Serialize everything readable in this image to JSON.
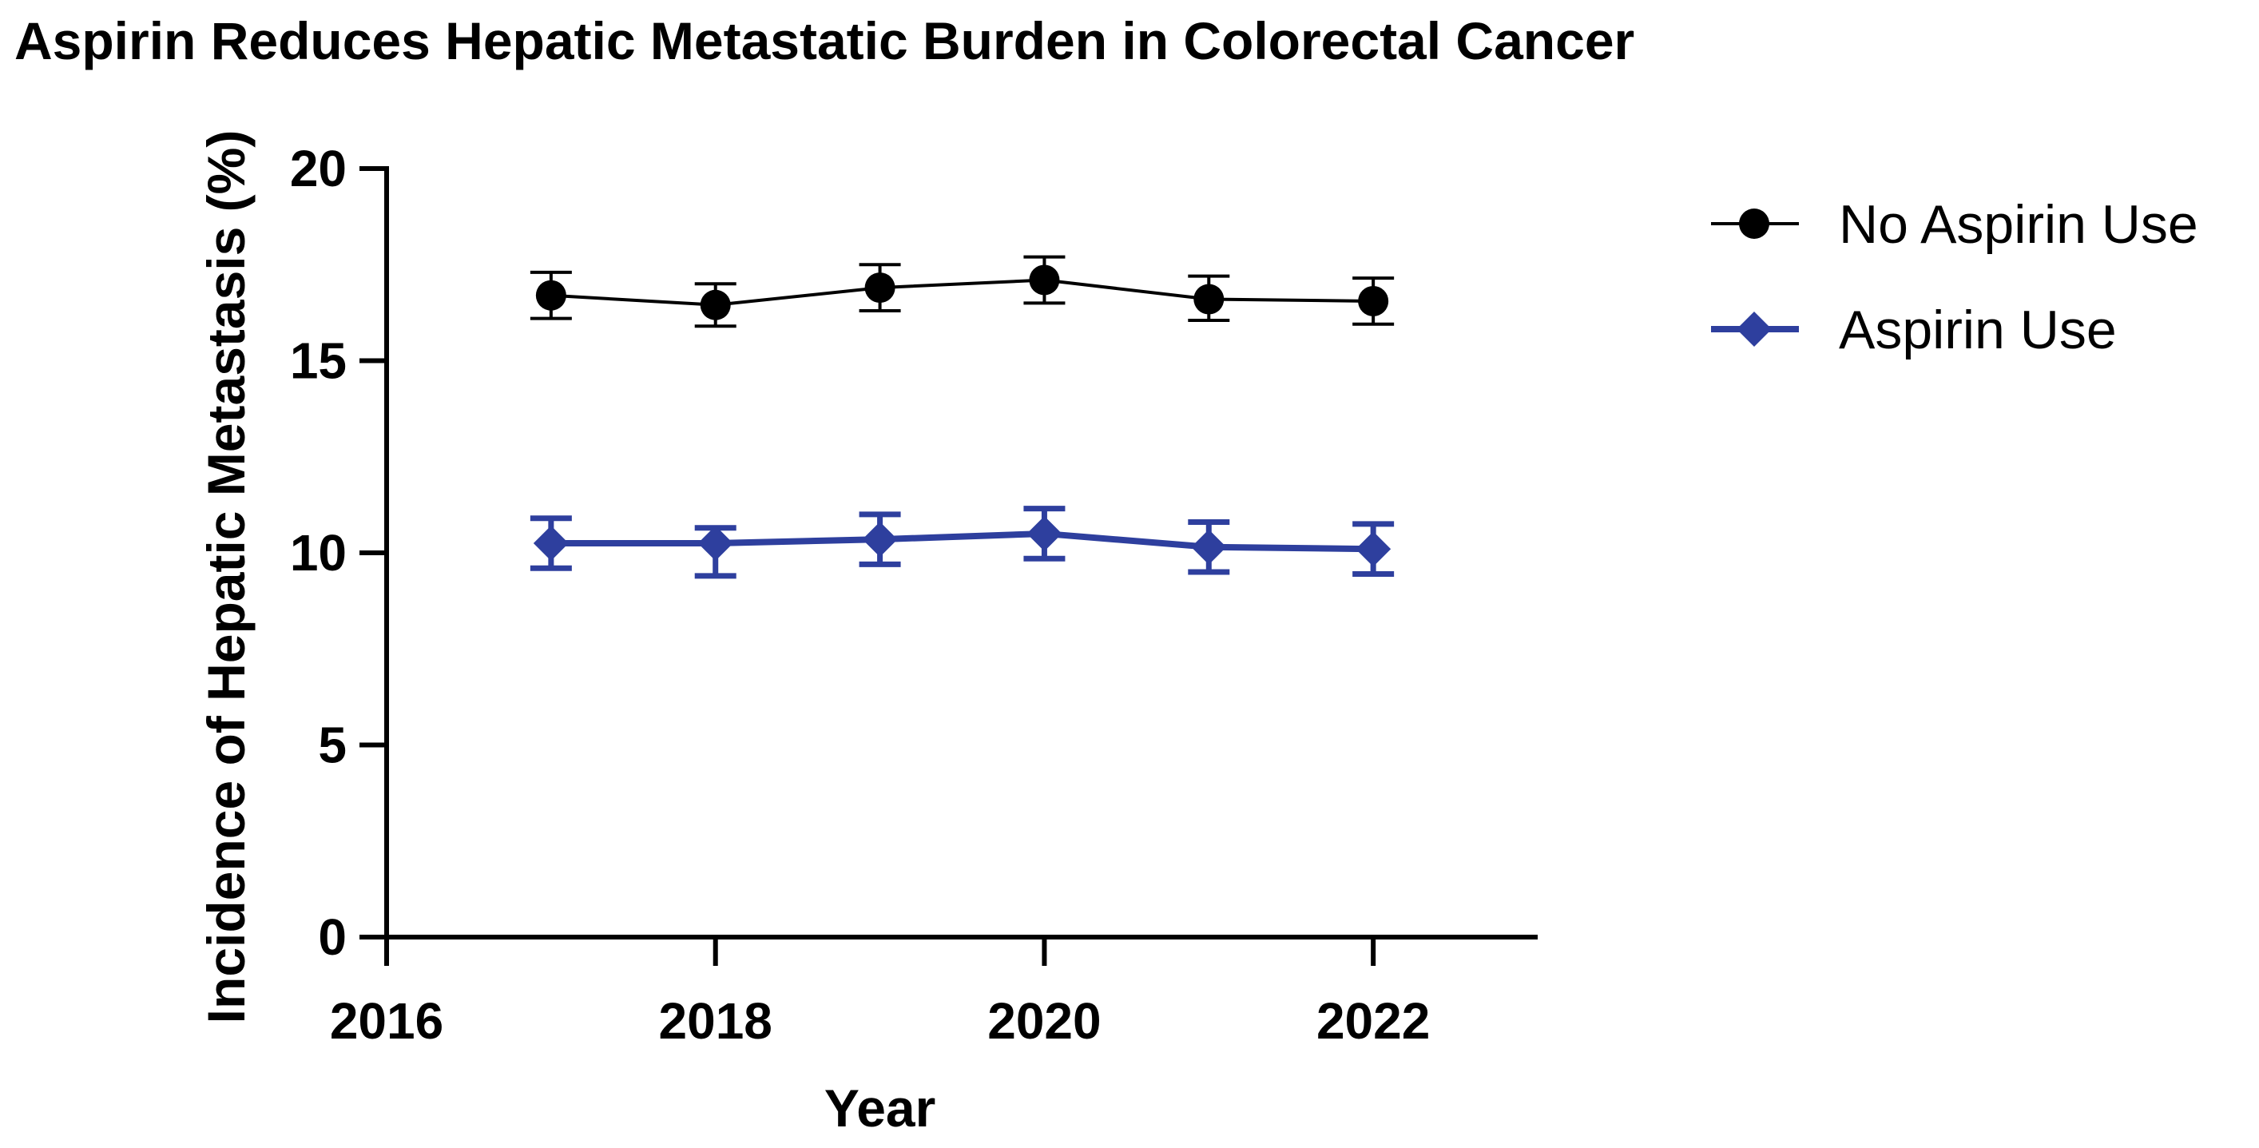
{
  "chart_data": {
    "type": "line",
    "title": "Aspirin Reduces Hepatic Metastatic Burden in Colorectal Cancer",
    "xlabel": "Year",
    "ylabel": "Incidence of Hepatic Metastasis (%)",
    "xlim": [
      2016,
      2023
    ],
    "ylim": [
      0,
      20
    ],
    "xticks": [
      2016,
      2018,
      2020,
      2022
    ],
    "yticks": [
      0,
      5,
      10,
      15,
      20
    ],
    "grid": false,
    "legend_position": "right",
    "x": [
      2017,
      2018,
      2019,
      2020,
      2021,
      2022
    ],
    "series": [
      {
        "name": "No Aspirin Use",
        "color": "#000000",
        "marker": "circle",
        "values": [
          16.7,
          16.45,
          16.9,
          17.1,
          16.6,
          16.55
        ],
        "err_low": [
          0.6,
          0.55,
          0.6,
          0.6,
          0.55,
          0.6
        ],
        "err_high": [
          0.6,
          0.55,
          0.6,
          0.6,
          0.6,
          0.6
        ]
      },
      {
        "name": "Aspirin Use",
        "color": "#2e3f9e",
        "marker": "diamond",
        "values": [
          10.25,
          10.25,
          10.35,
          10.5,
          10.15,
          10.1
        ],
        "err_low": [
          0.65,
          0.85,
          0.65,
          0.65,
          0.65,
          0.65
        ],
        "err_high": [
          0.65,
          0.4,
          0.65,
          0.65,
          0.65,
          0.65
        ]
      }
    ]
  }
}
